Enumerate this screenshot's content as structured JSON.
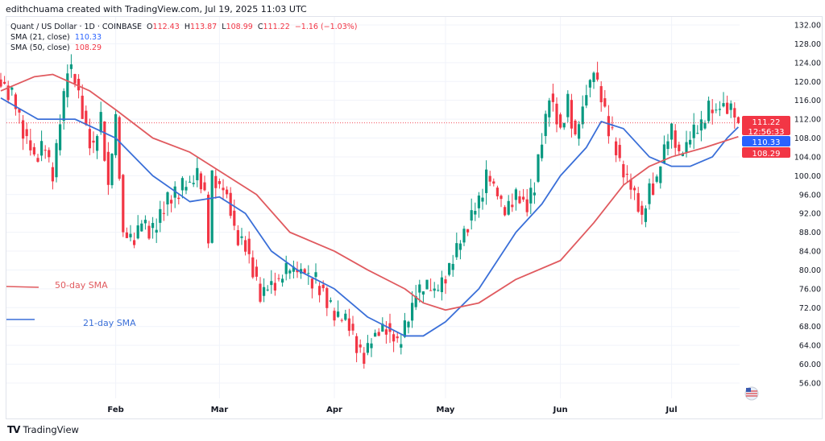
{
  "caption": "edithchuama created with TradingView.com, Jul 19, 2025 11:03 UTC",
  "legend": {
    "symbol": "Quant / US Dollar · 1D · COINBASE",
    "o_label": "O",
    "o": "112.43",
    "h_label": "H",
    "h": "113.87",
    "l_label": "L",
    "l": "108.99",
    "c_label": "C",
    "c": "111.22",
    "change": "−1.16 (−1.03%)",
    "sma21_label": "SMA (21, close)",
    "sma21": "110.33",
    "sma50_label": "SMA (50, close)",
    "sma50": "108.29"
  },
  "annotations": {
    "sma50": "50-day SMA",
    "sma21": "21-day SMA"
  },
  "price_tags": {
    "last": "111.22",
    "countdown": "12:56:33",
    "sma21": "110.33",
    "sma50": "108.29"
  },
  "logo": "TradingView",
  "colors": {
    "up": "#089981",
    "down": "#f23645",
    "sma21": "#3a6fd8",
    "sma50": "#e05a5f"
  },
  "chart_data": {
    "type": "candlestick",
    "title": "Quant / US Dollar · 1D · COINBASE",
    "ylim": [
      52,
      134
    ],
    "y_ticks": [
      56,
      60,
      64,
      68,
      72,
      76,
      80,
      84,
      88,
      92,
      96,
      100,
      104,
      108,
      112,
      116,
      120,
      124,
      128,
      132
    ],
    "x_ticks": [
      {
        "label": "Feb",
        "day": 31
      },
      {
        "label": "Mar",
        "day": 59
      },
      {
        "label": "Apr",
        "day": 90
      },
      {
        "label": "May",
        "day": 120
      },
      {
        "label": "Jun",
        "day": 151
      },
      {
        "label": "Jul",
        "day": 181
      }
    ],
    "x_unit": "day of 2025 (0 = Jan 1)",
    "close_anchors": [
      [
        0,
        120
      ],
      [
        3,
        117
      ],
      [
        6,
        110
      ],
      [
        9,
        104
      ],
      [
        12,
        106
      ],
      [
        14,
        99
      ],
      [
        16,
        112
      ],
      [
        18,
        122
      ],
      [
        20,
        121
      ],
      [
        23,
        110
      ],
      [
        25,
        106
      ],
      [
        27,
        112
      ],
      [
        29,
        98
      ],
      [
        31,
        112
      ],
      [
        33,
        88
      ],
      [
        35,
        86
      ],
      [
        38,
        90
      ],
      [
        41,
        88
      ],
      [
        44,
        94
      ],
      [
        47,
        96
      ],
      [
        50,
        98
      ],
      [
        53,
        100
      ],
      [
        55,
        96
      ],
      [
        56,
        86
      ],
      [
        57,
        100
      ],
      [
        59,
        98
      ],
      [
        61,
        96
      ],
      [
        63,
        88
      ],
      [
        66,
        86
      ],
      [
        68,
        80
      ],
      [
        70,
        74
      ],
      [
        72,
        77
      ],
      [
        75,
        78
      ],
      [
        78,
        80
      ],
      [
        81,
        80
      ],
      [
        84,
        78
      ],
      [
        87,
        76
      ],
      [
        90,
        70
      ],
      [
        93,
        70
      ],
      [
        96,
        64
      ],
      [
        98,
        62
      ],
      [
        100,
        66
      ],
      [
        104,
        68
      ],
      [
        107,
        64
      ],
      [
        110,
        70
      ],
      [
        112,
        75
      ],
      [
        115,
        76
      ],
      [
        118,
        76
      ],
      [
        121,
        80
      ],
      [
        124,
        86
      ],
      [
        127,
        92
      ],
      [
        129,
        94
      ],
      [
        131,
        100
      ],
      [
        133,
        98
      ],
      [
        136,
        92
      ],
      [
        139,
        96
      ],
      [
        142,
        94
      ],
      [
        144,
        98
      ],
      [
        146,
        108
      ],
      [
        148,
        118
      ],
      [
        151,
        110
      ],
      [
        153,
        116
      ],
      [
        155,
        108
      ],
      [
        158,
        118
      ],
      [
        160,
        122
      ],
      [
        162,
        116
      ],
      [
        164,
        110
      ],
      [
        166,
        106
      ],
      [
        168,
        100
      ],
      [
        171,
        96
      ],
      [
        173,
        90
      ],
      [
        175,
        98
      ],
      [
        177,
        98
      ],
      [
        179,
        106
      ],
      [
        181,
        110
      ],
      [
        183,
        104
      ],
      [
        186,
        108
      ],
      [
        189,
        110
      ],
      [
        191,
        114
      ],
      [
        193,
        114
      ],
      [
        195,
        115
      ],
      [
        197,
        114
      ],
      [
        199,
        111.22
      ]
    ],
    "series": [
      {
        "name": "SMA (21, close)",
        "points": [
          [
            0,
            116.5
          ],
          [
            10,
            112
          ],
          [
            20,
            112
          ],
          [
            31,
            108
          ],
          [
            41,
            100
          ],
          [
            51,
            94.5
          ],
          [
            59,
            95.5
          ],
          [
            66,
            92
          ],
          [
            73,
            84
          ],
          [
            80,
            80
          ],
          [
            90,
            76
          ],
          [
            99,
            70
          ],
          [
            109,
            66
          ],
          [
            114,
            66
          ],
          [
            120,
            69
          ],
          [
            129,
            76
          ],
          [
            139,
            88
          ],
          [
            146,
            94
          ],
          [
            151,
            100
          ],
          [
            158,
            106
          ],
          [
            162,
            111.5
          ],
          [
            168,
            110
          ],
          [
            175,
            104
          ],
          [
            181,
            102
          ],
          [
            186,
            102
          ],
          [
            192,
            104
          ],
          [
            196,
            108
          ],
          [
            199,
            110.33
          ]
        ]
      },
      {
        "name": "SMA (50, close)",
        "points": [
          [
            0,
            118
          ],
          [
            9,
            121
          ],
          [
            14,
            121.5
          ],
          [
            24,
            118
          ],
          [
            31,
            114
          ],
          [
            41,
            108
          ],
          [
            51,
            105
          ],
          [
            59,
            101
          ],
          [
            69,
            96
          ],
          [
            78,
            88
          ],
          [
            90,
            84
          ],
          [
            99,
            80
          ],
          [
            109,
            76
          ],
          [
            114,
            73
          ],
          [
            120,
            71.5
          ],
          [
            129,
            73
          ],
          [
            139,
            78
          ],
          [
            151,
            82
          ],
          [
            160,
            90
          ],
          [
            168,
            98
          ],
          [
            175,
            102
          ],
          [
            181,
            104
          ],
          [
            190,
            106
          ],
          [
            199,
            108.29
          ]
        ]
      }
    ]
  }
}
